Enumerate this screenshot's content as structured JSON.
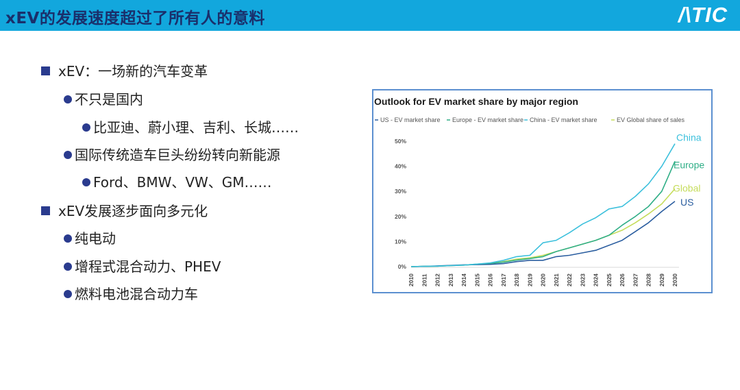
{
  "header": {
    "title": "xEV的发展速度超过了所有人的意料",
    "logo": "/\\TIC"
  },
  "bullets": [
    {
      "level": 1,
      "text": "xEV：一场新的汽车变革"
    },
    {
      "level": 2,
      "text": "不只是国内"
    },
    {
      "level": 3,
      "text": "比亚迪、蔚小理、吉利、长城……"
    },
    {
      "level": 2,
      "text": "国际传统造车巨头纷纷转向新能源"
    },
    {
      "level": 3,
      "text": "Ford、BMW、VW、GM……"
    },
    {
      "level": 1,
      "text": "xEV发展逐步面向多元化"
    },
    {
      "level": 2,
      "text": "纯电动"
    },
    {
      "level": 2,
      "text": "增程式混合动力、PHEV"
    },
    {
      "level": 2,
      "text": "燃料电池混合动力车"
    }
  ],
  "colors": {
    "header_bg": "#12a7dd",
    "title_text": "#1a2f6b",
    "bullet_marker": "#2a3b8e",
    "chart_border": "#5b8fd0"
  },
  "chart_data": {
    "type": "line",
    "title": "Outlook for EV market share by major region",
    "x": [
      "2010",
      "2011",
      "2012",
      "2013",
      "2014",
      "2015",
      "2016",
      "2017",
      "2018",
      "2019",
      "2020",
      "2021",
      "2022",
      "2023",
      "2024",
      "2025",
      "2026",
      "2027",
      "2028",
      "2029",
      "2030"
    ],
    "ylim": [
      0,
      50
    ],
    "yticks": [
      "0%",
      "10%",
      "20%",
      "30%",
      "40%",
      "50%"
    ],
    "ytick_values": [
      0,
      10,
      20,
      30,
      40,
      50
    ],
    "grid": false,
    "legend_position": "top",
    "series": [
      {
        "name": "US - EV market share",
        "end_label": "US",
        "color": "#2a5d9f",
        "values": [
          0,
          0.1,
          0.3,
          0.5,
          0.7,
          0.8,
          0.9,
          1.2,
          2.0,
          2.5,
          2.5,
          4,
          4.5,
          5.5,
          6.5,
          8.5,
          10.5,
          14,
          17.5,
          22,
          26
        ]
      },
      {
        "name": "Europe - EV market share",
        "end_label": "Europe",
        "color": "#2fae86",
        "values": [
          0,
          0.1,
          0.2,
          0.4,
          0.6,
          1.0,
          1.3,
          1.8,
          2.6,
          3.2,
          4.0,
          6.0,
          7.5,
          9.0,
          10.5,
          12.5,
          16.5,
          20,
          24,
          30,
          42
        ]
      },
      {
        "name": "China - EV market share",
        "end_label": "China",
        "color": "#3cc0dc",
        "values": [
          0,
          0.1,
          0.2,
          0.4,
          0.6,
          1.0,
          1.5,
          2.5,
          4.0,
          4.5,
          9.5,
          10.5,
          13.5,
          17,
          19.5,
          23,
          24,
          28,
          33,
          40,
          49
        ]
      },
      {
        "name": "EV Global share of sales",
        "end_label": "Global",
        "color": "#c5dc5a",
        "values": [
          0,
          0.1,
          0.2,
          0.4,
          0.6,
          0.9,
          1.2,
          2.0,
          3.0,
          3.5,
          4.5,
          6.0,
          7.5,
          9.0,
          10.5,
          12.5,
          14.5,
          17.5,
          21,
          25,
          31
        ]
      }
    ]
  }
}
